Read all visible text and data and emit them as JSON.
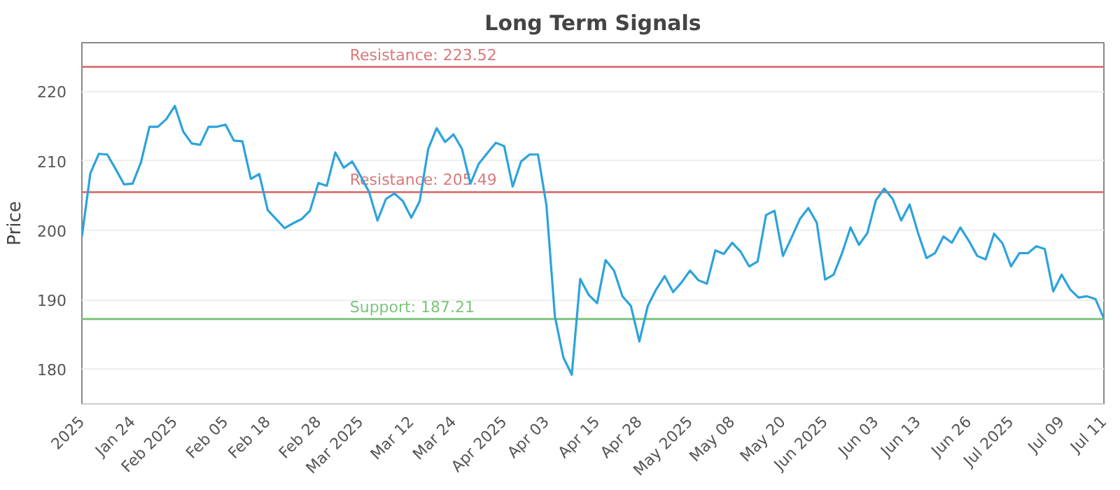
{
  "chart_data": {
    "type": "line",
    "title": "Long Term Signals",
    "ylabel": "Price",
    "categories": [
      "2025",
      null,
      null,
      null,
      null,
      null,
      "Jan 24",
      null,
      null,
      null,
      null,
      "Feb 2025",
      null,
      null,
      null,
      null,
      null,
      "Feb 05",
      null,
      null,
      null,
      null,
      "Feb 18",
      null,
      null,
      null,
      null,
      null,
      "Feb 28",
      null,
      null,
      null,
      null,
      "Mar 2025",
      null,
      null,
      null,
      null,
      null,
      "Mar 12",
      null,
      null,
      null,
      null,
      "Mar 24",
      null,
      null,
      null,
      null,
      null,
      "Apr 2025",
      null,
      null,
      null,
      null,
      "Apr 03",
      null,
      null,
      null,
      null,
      null,
      "Apr 15",
      null,
      null,
      null,
      null,
      "Apr 28",
      null,
      null,
      null,
      null,
      null,
      "May 2025",
      null,
      null,
      null,
      null,
      "May 08",
      null,
      null,
      null,
      null,
      null,
      "May 20",
      null,
      null,
      null,
      null,
      "Jun 2025",
      null,
      null,
      null,
      null,
      null,
      "Jun 03",
      null,
      null,
      null,
      null,
      "Jun 13",
      null,
      null,
      null,
      null,
      null,
      "Jun 26",
      null,
      null,
      null,
      null,
      "Jul 2025",
      null,
      null,
      null,
      null,
      null,
      "Jul 09",
      null,
      null,
      null,
      null,
      "Jul 11"
    ],
    "series": [
      {
        "color": "#2ca3dc",
        "values": [
          199.1,
          208.2,
          211.0,
          210.9,
          208.8,
          206.6,
          206.7,
          209.8,
          214.9,
          214.9,
          216.0,
          217.9,
          214.2,
          212.5,
          212.3,
          214.9,
          214.9,
          215.2,
          212.9,
          212.8,
          207.4,
          208.1,
          202.9,
          201.6,
          200.3,
          201.0,
          201.6,
          202.8,
          206.8,
          206.4,
          211.2,
          209.0,
          209.9,
          207.8,
          205.5,
          201.4,
          204.5,
          205.3,
          204.2,
          201.8,
          204.2,
          211.7,
          214.7,
          212.7,
          213.8,
          211.7,
          206.7,
          209.6,
          211.1,
          212.6,
          212.1,
          206.3,
          209.9,
          210.9,
          210.9,
          203.6,
          187.6,
          181.7,
          179.2,
          193.0,
          190.7,
          189.5,
          195.7,
          194.2,
          190.5,
          189.1,
          184.0,
          189.1,
          191.5,
          193.4,
          191.1,
          192.5,
          194.2,
          192.8,
          192.3,
          197.1,
          196.6,
          198.2,
          196.9,
          194.8,
          195.5,
          202.2,
          202.8,
          196.3,
          198.9,
          201.6,
          203.2,
          201.1,
          192.9,
          193.6,
          196.7,
          200.4,
          197.9,
          199.6,
          204.3,
          206.0,
          204.5,
          201.4,
          203.7,
          199.6,
          196.0,
          196.7,
          199.1,
          198.2,
          200.4,
          198.5,
          196.3,
          195.8,
          199.5,
          198.1,
          194.8,
          196.7,
          196.7,
          197.7,
          197.3,
          191.2,
          193.6,
          191.5,
          190.3,
          190.5,
          190.1,
          187.3
        ]
      }
    ],
    "ylim": [
      175,
      227
    ],
    "yticks": [
      180,
      190,
      200,
      210,
      220
    ],
    "grid": "y",
    "marker": "none",
    "line_style": "solid",
    "ref_lines": [
      {
        "axis": "y",
        "value": 223.52,
        "label": "Resistance: 223.52",
        "color": "#d9797a"
      },
      {
        "axis": "y",
        "value": 205.49,
        "label": "Resistance: 205.49",
        "color": "#d9797a"
      },
      {
        "axis": "y",
        "value": 187.21,
        "label": "Support: 187.21",
        "color": "#7cc47c"
      }
    ]
  }
}
